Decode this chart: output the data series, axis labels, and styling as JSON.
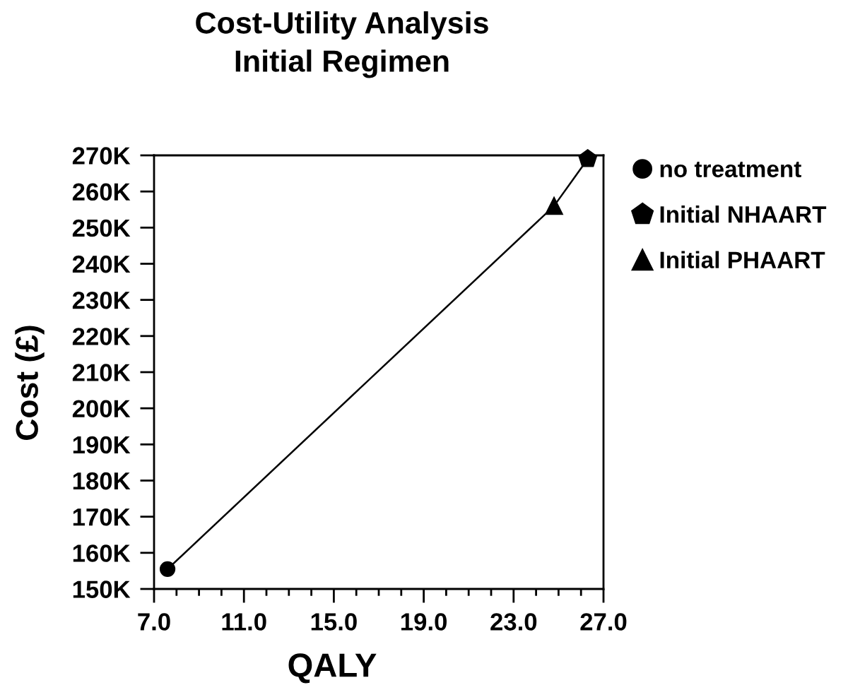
{
  "chart_data": {
    "type": "scatter",
    "title": "Cost-Utility Analysis\nInitial Regimen",
    "xlabel": "QALY",
    "ylabel": "Cost (£)",
    "xlim": [
      7,
      27
    ],
    "ylim": [
      150000,
      270000
    ],
    "xticks": [
      {
        "value": 7,
        "label": "7.0"
      },
      {
        "value": 8,
        "label": null
      },
      {
        "value": 9,
        "label": null
      },
      {
        "value": 10,
        "label": null
      },
      {
        "value": 11,
        "label": "11.0"
      },
      {
        "value": 12,
        "label": null
      },
      {
        "value": 13,
        "label": null
      },
      {
        "value": 14,
        "label": null
      },
      {
        "value": 15,
        "label": "15.0"
      },
      {
        "value": 16,
        "label": null
      },
      {
        "value": 17,
        "label": null
      },
      {
        "value": 18,
        "label": null
      },
      {
        "value": 19,
        "label": "19.0"
      },
      {
        "value": 20,
        "label": null
      },
      {
        "value": 21,
        "label": null
      },
      {
        "value": 22,
        "label": null
      },
      {
        "value": 23,
        "label": "23.0"
      },
      {
        "value": 24,
        "label": null
      },
      {
        "value": 25,
        "label": null
      },
      {
        "value": 26,
        "label": null
      },
      {
        "value": 27,
        "label": "27.0"
      }
    ],
    "yticks": [
      {
        "value": 150000,
        "label": "150K"
      },
      {
        "value": 160000,
        "label": "160K"
      },
      {
        "value": 170000,
        "label": "170K"
      },
      {
        "value": 180000,
        "label": "180K"
      },
      {
        "value": 190000,
        "label": "190K"
      },
      {
        "value": 200000,
        "label": "200K"
      },
      {
        "value": 210000,
        "label": "210K"
      },
      {
        "value": 220000,
        "label": "220K"
      },
      {
        "value": 230000,
        "label": "230K"
      },
      {
        "value": 240000,
        "label": "240K"
      },
      {
        "value": 250000,
        "label": "250K"
      },
      {
        "value": 260000,
        "label": "260K"
      },
      {
        "value": 270000,
        "label": "270K"
      }
    ],
    "legend": "top right",
    "series": [
      {
        "type": "line",
        "x": [
          7.6,
          24.8,
          26.3
        ],
        "values": [
          155500,
          256000,
          269000
        ],
        "color": "#000000",
        "marker": "none",
        "line_style": "solid"
      },
      {
        "name": "no treatment",
        "x": [
          7.6
        ],
        "values": [
          155500
        ],
        "color": "#000000",
        "marker": "circle"
      },
      {
        "name": "Initial NHAART",
        "x": [
          26.3
        ],
        "values": [
          269000
        ],
        "color": "#000000"
      },
      {
        "name": "Initial PHAART",
        "x": [
          24.8
        ],
        "values": [
          256000
        ],
        "color": "#000000",
        "marker": "triangle"
      }
    ]
  }
}
